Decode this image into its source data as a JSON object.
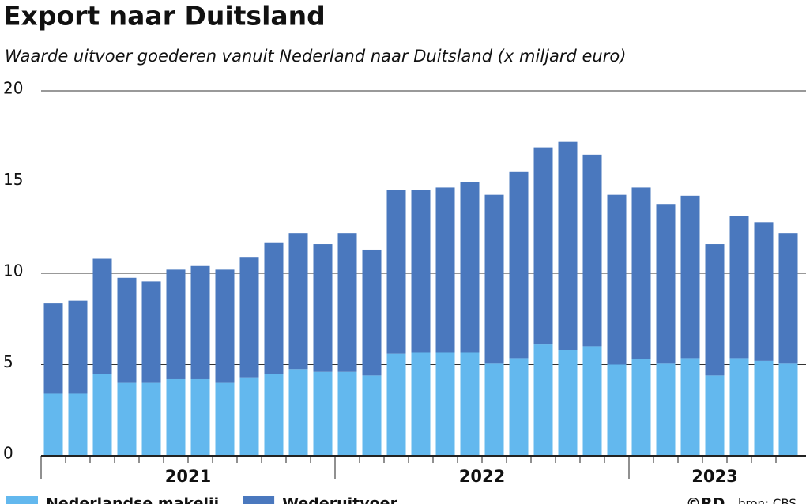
{
  "chart_data": {
    "type": "stacked_bar",
    "title": "Export naar Duitsland",
    "subtitle": "Waarde uitvoer goederen vanuit Nederland naar Duitsland (x miljard euro)",
    "categories": [
      null,
      null,
      null,
      null,
      null,
      null,
      null,
      null,
      null,
      null,
      null,
      null,
      null,
      null,
      null,
      null,
      null,
      null,
      null,
      null,
      null,
      null,
      null,
      null,
      null,
      null,
      null,
      null,
      null,
      null,
      null
    ],
    "groups": [
      {
        "label": "2021",
        "size": 12
      },
      {
        "label": "2022",
        "size": 12
      },
      {
        "label": "2023",
        "size": 7
      }
    ],
    "series": [
      {
        "name": "Nederlandse makelij",
        "color": "#63b8ee",
        "values": [
          3.4,
          3.4,
          4.5,
          4.0,
          4.0,
          4.2,
          4.2,
          4.0,
          4.3,
          4.5,
          4.75,
          4.6,
          4.6,
          4.4,
          5.6,
          5.65,
          5.65,
          5.65,
          5.05,
          5.35,
          6.1,
          5.8,
          6.0,
          5.0,
          5.3,
          5.05,
          5.35,
          4.4,
          5.35,
          5.2,
          5.05
        ]
      },
      {
        "name": "Wederuitvoer",
        "color": "#4a78be",
        "values": [
          4.95,
          5.1,
          6.3,
          5.75,
          5.55,
          6.0,
          6.2,
          6.2,
          6.6,
          7.2,
          7.45,
          7.0,
          7.6,
          6.9,
          8.95,
          8.9,
          9.05,
          9.35,
          9.25,
          10.2,
          10.8,
          11.4,
          10.5,
          9.3,
          9.4,
          8.75,
          8.9,
          7.2,
          7.8,
          7.6,
          7.15
        ]
      }
    ],
    "ylim": [
      0,
      20
    ],
    "yticks": [
      0,
      5,
      10,
      15,
      20
    ],
    "grid": true,
    "credit": "©RD",
    "source": "bron: CBS"
  }
}
